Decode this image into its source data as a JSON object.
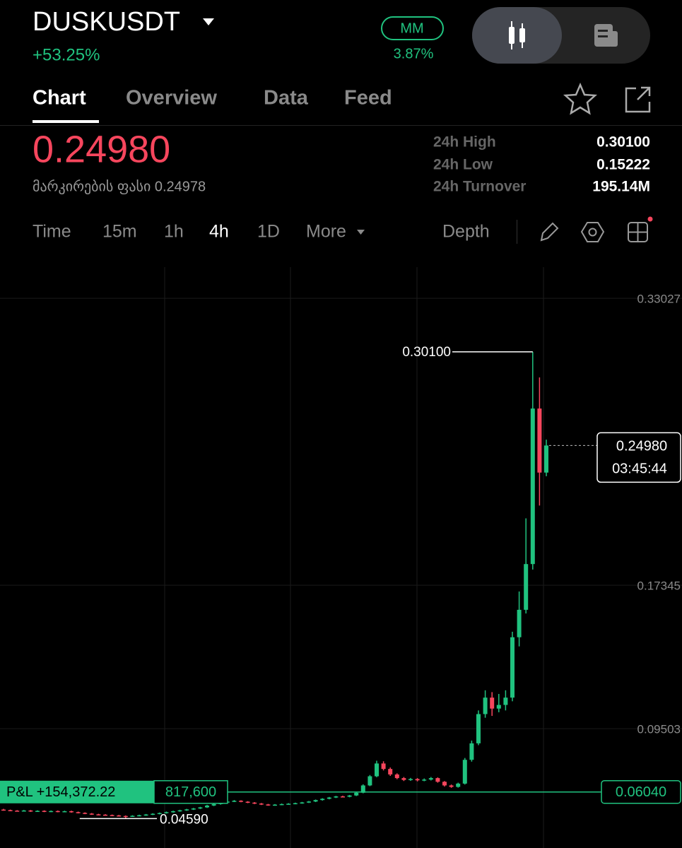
{
  "header": {
    "symbol": "DUSKUSDT",
    "change": "+53.25%",
    "mm_label": "MM",
    "mm_value": "3.87%"
  },
  "tabs": [
    "Chart",
    "Overview",
    "Data",
    "Feed"
  ],
  "price": "0.24980",
  "mark_price": "მარკირების ფასი 0.24978",
  "stats": [
    {
      "label": "24h High",
      "value": "0.30100"
    },
    {
      "label": "24h Low",
      "value": "0.15222"
    },
    {
      "label": "24h Turnover",
      "value": "195.14M"
    }
  ],
  "intervals": [
    "Time",
    "15m",
    "1h",
    "4h",
    "1D",
    "More"
  ],
  "depth": "Depth",
  "chart_data": {
    "type": "candlestick",
    "up_color": "#20c27f",
    "down_color": "#f6465d",
    "ylim": [
      0.0298,
      0.3473
    ],
    "yticks": [
      0.33027,
      0.17345,
      0.09503
    ],
    "grid": true,
    "open": [
      0.0508,
      0.0505,
      0.0502,
      0.05,
      0.0503,
      0.0498,
      0.0501,
      0.0497,
      0.05,
      0.0496,
      0.0499,
      0.0494,
      0.049,
      0.0486,
      0.0482,
      0.048,
      0.0478,
      0.0476,
      0.0473,
      0.0471,
      0.0474,
      0.0477,
      0.0481,
      0.0485,
      0.0489,
      0.0494,
      0.0499,
      0.0504,
      0.0509,
      0.0514,
      0.052,
      0.053,
      0.0538,
      0.0546,
      0.0552,
      0.0556,
      0.0551,
      0.0546,
      0.0541,
      0.0536,
      0.0532,
      0.0535,
      0.0538,
      0.054,
      0.0543,
      0.0547,
      0.0552,
      0.056,
      0.0567,
      0.0574,
      0.058,
      0.0578,
      0.0585,
      0.06,
      0.064,
      0.069,
      0.076,
      0.073,
      0.07,
      0.068,
      0.067,
      0.0675,
      0.0668,
      0.0672,
      0.068,
      0.066,
      0.064,
      0.0632,
      0.065,
      0.078,
      0.087,
      0.103,
      0.112,
      0.106,
      0.108,
      0.112,
      0.145,
      0.16,
      0.185,
      0.27,
      0.235
    ],
    "high": [
      0.0512,
      0.0508,
      0.0505,
      0.0506,
      0.0506,
      0.0504,
      0.0504,
      0.0503,
      0.0503,
      0.0502,
      0.0502,
      0.0497,
      0.0493,
      0.0489,
      0.0485,
      0.0483,
      0.0481,
      0.0479,
      0.0476,
      0.0477,
      0.048,
      0.0484,
      0.0488,
      0.0492,
      0.0497,
      0.0502,
      0.0507,
      0.0512,
      0.0517,
      0.0523,
      0.0534,
      0.0542,
      0.055,
      0.0556,
      0.056,
      0.0559,
      0.0554,
      0.0549,
      0.0544,
      0.0539,
      0.0538,
      0.0541,
      0.0543,
      0.0546,
      0.055,
      0.0555,
      0.0563,
      0.057,
      0.0577,
      0.0583,
      0.0584,
      0.0588,
      0.0604,
      0.0646,
      0.0697,
      0.0775,
      0.0772,
      0.0738,
      0.0706,
      0.0686,
      0.0681,
      0.068,
      0.0678,
      0.0686,
      0.0684,
      0.0664,
      0.0645,
      0.0655,
      0.079,
      0.0885,
      0.105,
      0.116,
      0.115,
      0.114,
      0.116,
      0.148,
      0.17,
      0.21,
      0.301,
      0.287,
      0.253
    ],
    "low": [
      0.0502,
      0.0499,
      0.0497,
      0.0497,
      0.0495,
      0.0495,
      0.0494,
      0.0494,
      0.0493,
      0.0493,
      0.0491,
      0.0487,
      0.0483,
      0.0479,
      0.0477,
      0.0475,
      0.0473,
      0.047,
      0.0459,
      0.0468,
      0.0471,
      0.0474,
      0.0478,
      0.0482,
      0.0486,
      0.0491,
      0.0496,
      0.0501,
      0.0506,
      0.0511,
      0.0517,
      0.0527,
      0.0535,
      0.0543,
      0.0549,
      0.0548,
      0.0543,
      0.0538,
      0.0533,
      0.0529,
      0.0529,
      0.0532,
      0.0535,
      0.0537,
      0.054,
      0.0544,
      0.0549,
      0.0557,
      0.0564,
      0.0571,
      0.0575,
      0.0575,
      0.0582,
      0.0597,
      0.0636,
      0.0685,
      0.0722,
      0.0692,
      0.0674,
      0.0664,
      0.0665,
      0.0662,
      0.0663,
      0.0667,
      0.0655,
      0.0634,
      0.0627,
      0.0628,
      0.0645,
      0.077,
      0.086,
      0.101,
      0.102,
      0.104,
      0.105,
      0.11,
      0.14,
      0.158,
      0.182,
      0.217,
      0.233
    ],
    "close": [
      0.0505,
      0.0502,
      0.05,
      0.0503,
      0.0498,
      0.0501,
      0.0497,
      0.05,
      0.0496,
      0.0499,
      0.0494,
      0.049,
      0.0486,
      0.0482,
      0.048,
      0.0478,
      0.0476,
      0.0473,
      0.0471,
      0.0474,
      0.0477,
      0.0481,
      0.0485,
      0.0489,
      0.0494,
      0.0499,
      0.0504,
      0.0509,
      0.0514,
      0.052,
      0.053,
      0.0538,
      0.0546,
      0.0552,
      0.0556,
      0.0551,
      0.0546,
      0.0541,
      0.0536,
      0.0532,
      0.0535,
      0.0538,
      0.054,
      0.0543,
      0.0547,
      0.0552,
      0.056,
      0.0567,
      0.0574,
      0.058,
      0.0578,
      0.0585,
      0.06,
      0.064,
      0.069,
      0.076,
      0.073,
      0.07,
      0.068,
      0.067,
      0.0675,
      0.0668,
      0.0672,
      0.068,
      0.066,
      0.064,
      0.0632,
      0.065,
      0.078,
      0.087,
      0.103,
      0.112,
      0.106,
      0.108,
      0.112,
      0.145,
      0.16,
      0.185,
      0.27,
      0.235,
      0.2498
    ],
    "max_label": {
      "value": 0.301,
      "label": "0.30100"
    },
    "min_label": {
      "value": 0.0459,
      "label": "0.04590"
    },
    "current_price": {
      "value": 0.2498,
      "label": "0.24980",
      "countdown": "03:45:44"
    },
    "position": {
      "value": 0.0604,
      "label": "0.06040",
      "pnl": "P&L +154,372.22",
      "size": "817,600"
    }
  }
}
